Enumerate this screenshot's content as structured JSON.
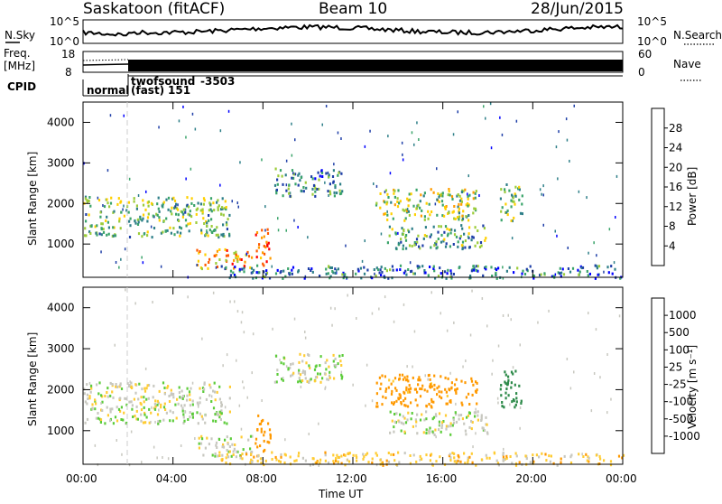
{
  "header": {
    "station": "Saskatoon (fitACF)",
    "beam": "Beam 10",
    "date": "28/Jun/2015"
  },
  "top_panels": {
    "nsky_label": "N.Sky",
    "nsky_ticks": [
      "10^5",
      "10^0"
    ],
    "nsearch_label": "N.Search",
    "nsearch_ticks": [
      "10^5",
      "10^0"
    ],
    "freq_label": "Freq.",
    "freq_unit": "[MHz]",
    "freq_ticks": [
      "18",
      "8"
    ],
    "nave_label": "Nave",
    "nave_ticks": [
      "60",
      "0"
    ],
    "cpid_label": "CPID",
    "cpid_segments": [
      "normal",
      "twofsound",
      "-3503",
      "(fast)",
      "151"
    ]
  },
  "x_axis": {
    "label": "Time UT",
    "ticks": [
      "00:00",
      "04:00",
      "08:00",
      "12:00",
      "16:00",
      "20:00",
      "00:00"
    ]
  },
  "power_panel": {
    "ylabel": "Slant Range [km]",
    "yticks": [
      "4000",
      "3000",
      "2000",
      "1000"
    ],
    "colorbar_label": "Power [dB]",
    "colorbar_ticks": [
      "28",
      "24",
      "20",
      "16",
      "12",
      "8",
      "4"
    ],
    "colors": [
      "#0000ff",
      "#1f3fa8",
      "#2e7f88",
      "#3aa46a",
      "#9ccc3a",
      "#ffd000",
      "#ff9c00",
      "#ff5a00",
      "#ff0000"
    ]
  },
  "velocity_panel": {
    "ylabel": "Slant Range [km]",
    "yticks": [
      "4000",
      "3000",
      "2000",
      "1000"
    ],
    "colorbar_label": "Velocity [m s⁻¹]",
    "colorbar_ticks": [
      "1000",
      "500",
      "100",
      "25",
      "-25",
      "-100",
      "-500",
      "-1000"
    ],
    "colors": [
      "#1f3fb0",
      "#2a6f9c",
      "#2e8a4a",
      "#5ccc3a",
      "#c8c8c0",
      "#ffcc33",
      "#ff9900",
      "#ff5500",
      "#ff0000"
    ]
  },
  "chart_data": {
    "type": "heatmap",
    "title": "Saskatoon (fitACF)",
    "xlabel": "Time UT",
    "ylabel": "Slant Range [km]",
    "xlim": [
      "00:00",
      "24:00"
    ],
    "ylim": [
      180,
      4500
    ],
    "regions": [
      {
        "t_start": 0.0,
        "t_end": 6.5,
        "range_min": 1200,
        "range_max": 2200,
        "power_db": 14,
        "velocity": 0
      },
      {
        "t_start": 5.0,
        "t_end": 7.5,
        "range_min": 400,
        "range_max": 900,
        "power_db": 22,
        "velocity": 0
      },
      {
        "t_start": 7.6,
        "t_end": 8.3,
        "range_min": 500,
        "range_max": 1400,
        "power_db": 26,
        "velocity": -300
      },
      {
        "t_start": 8.5,
        "t_end": 11.5,
        "range_min": 2200,
        "range_max": 2900,
        "power_db": 10,
        "velocity": 0
      },
      {
        "t_start": 13.0,
        "t_end": 17.5,
        "range_min": 1600,
        "range_max": 2400,
        "power_db": 16,
        "velocity": -150
      },
      {
        "t_start": 13.5,
        "t_end": 18.0,
        "range_min": 900,
        "range_max": 1500,
        "power_db": 12,
        "velocity": 0
      },
      {
        "t_start": 18.5,
        "t_end": 19.5,
        "range_min": 1600,
        "range_max": 2500,
        "power_db": 14,
        "velocity": 400
      },
      {
        "t_start": 6.0,
        "t_end": 24.0,
        "range_min": 180,
        "range_max": 500,
        "power_db": 8,
        "velocity": -60
      }
    ]
  }
}
